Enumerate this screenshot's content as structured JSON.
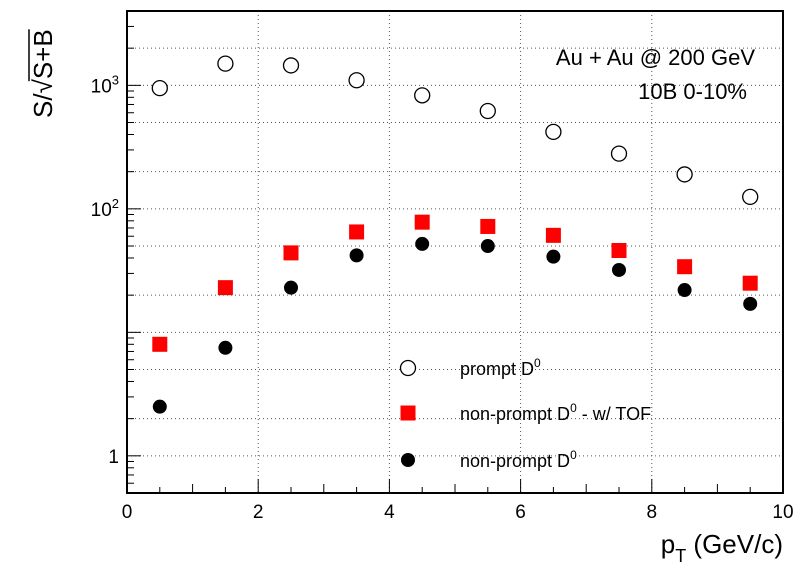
{
  "chart_data": {
    "type": "scatter",
    "xlabel": "p_T (GeV/c)",
    "ylabel": "S/√S+B",
    "xlim": [
      0,
      10
    ],
    "ylog": true,
    "grid": true,
    "x_ticks": [
      "0",
      "2",
      "4",
      "6",
      "8",
      "10"
    ],
    "y_ticks": [
      {
        "value": 1,
        "base": "1",
        "exp": ""
      },
      {
        "value": 100,
        "base": "10",
        "exp": "2"
      },
      {
        "value": 1000,
        "base": "10",
        "exp": "3"
      }
    ],
    "annotations": [
      "Au + Au @ 200 GeV",
      "10B 0-10%"
    ],
    "legend_position": "bottom-center",
    "series": [
      {
        "name": "prompt D",
        "name_sup": "0",
        "marker": "open-circle",
        "color": "#000000",
        "x": [
          0.5,
          1.5,
          2.5,
          3.5,
          4.5,
          5.5,
          6.5,
          7.5,
          8.5,
          9.5
        ],
        "y": [
          950,
          1500,
          1450,
          1100,
          830,
          620,
          420,
          280,
          190,
          125
        ]
      },
      {
        "name": "non-prompt D",
        "name_sup": "0",
        "name_suffix": " - w/ TOF",
        "marker": "filled-square",
        "color": "#ff0000",
        "x": [
          0.5,
          1.5,
          2.5,
          3.5,
          4.5,
          5.5,
          6.5,
          7.5,
          8.5,
          9.5
        ],
        "y": [
          8,
          23,
          44,
          65,
          78,
          72,
          61,
          46,
          34,
          25
        ]
      },
      {
        "name": "non-prompt D",
        "name_sup": "0",
        "name_suffix": "",
        "marker": "filled-circle",
        "color": "#000000",
        "x": [
          0.5,
          1.5,
          2.5,
          3.5,
          4.5,
          5.5,
          6.5,
          7.5,
          8.5,
          9.5
        ],
        "y": [
          2.5,
          7.5,
          23,
          42,
          52,
          50,
          41,
          32,
          22,
          17
        ]
      }
    ]
  }
}
